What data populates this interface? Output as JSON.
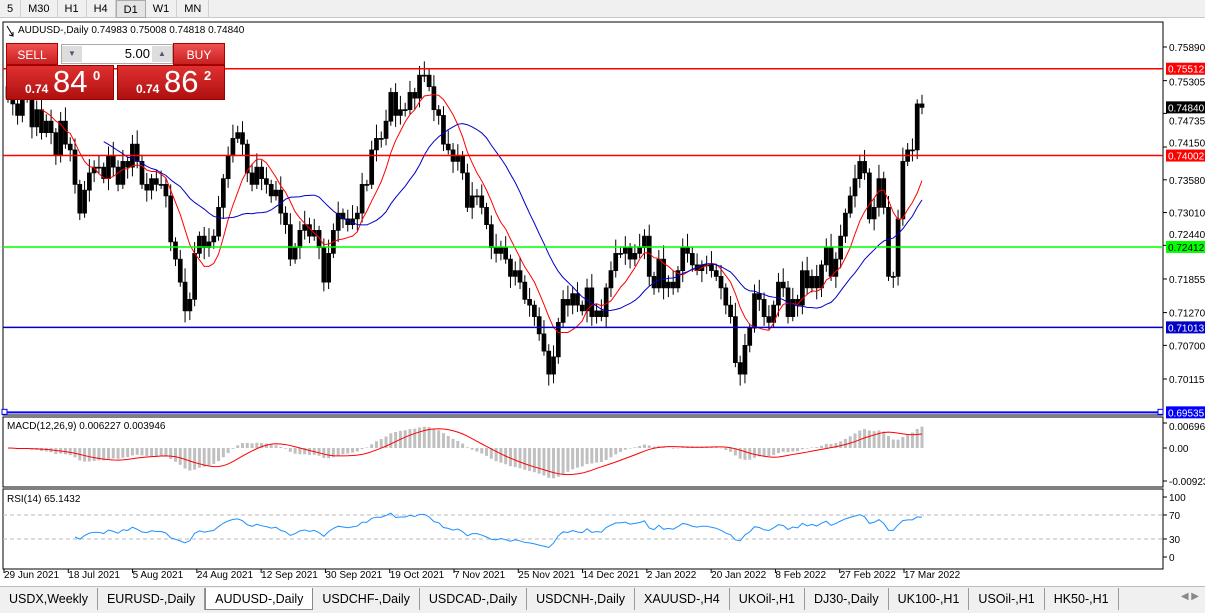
{
  "timeframes": [
    "5",
    "M30",
    "H1",
    "H4",
    "D1",
    "W1",
    "MN"
  ],
  "active_timeframe": "D1",
  "chart": {
    "symbol_line": "AUDUSD-,Daily  0.74983 0.75008 0.74818 0.74840",
    "trade_panel": {
      "sell_label": "SELL",
      "buy_label": "BUY",
      "lot": "5.00",
      "sell_prefix": "0.74",
      "sell_big": "84",
      "sell_sup": "0",
      "buy_prefix": "0.74",
      "buy_big": "86",
      "buy_sup": "2"
    },
    "price_ticks": [
      "0.75890",
      "0.75305",
      "0.74735",
      "0.74150",
      "0.73580",
      "0.73010",
      "0.72440",
      "0.71855",
      "0.71270",
      "0.70700",
      "0.70115"
    ],
    "levels": [
      {
        "price": "0.75512",
        "color": "#ff0000"
      },
      {
        "price": "0.74002",
        "color": "#ff0000"
      },
      {
        "price": "0.72412",
        "color": "#00ff00"
      },
      {
        "price": "0.71013",
        "color": "#0000c8"
      },
      {
        "price": "0.69535",
        "color": "#0000ff"
      }
    ],
    "current_price": "0.74840",
    "bull_color": "#00c000",
    "bear_color": "#ffffff",
    "macd_label": "MACD(12,26,9) 0.006227 0.003946",
    "macd_ticks": [
      "0.006964",
      "0.00",
      "-0.00923"
    ],
    "rsi_label": "RSI(14) 65.1432",
    "rsi_ticks": [
      "100",
      "70",
      "30",
      "0"
    ],
    "date_labels": [
      "29 Jun 2021",
      "18 Jul 2021",
      "5 Aug 2021",
      "24 Aug 2021",
      "12 Sep 2021",
      "30 Sep 2021",
      "19 Oct 2021",
      "7 Nov 2021",
      "25 Nov 2021",
      "14 Dec 2021",
      "2 Jan 2022",
      "20 Jan 2022",
      "8 Feb 2022",
      "27 Feb 2022",
      "17 Mar 2022"
    ]
  },
  "chart_data": {
    "type": "candlestick",
    "title": "AUDUSD-,Daily",
    "ylim": [
      0.6945,
      0.7625
    ],
    "closes": [
      0.75,
      0.749,
      0.747,
      0.75,
      0.751,
      0.745,
      0.748,
      0.744,
      0.746,
      0.744,
      0.74,
      0.746,
      0.742,
      0.741,
      0.735,
      0.73,
      0.734,
      0.737,
      0.738,
      0.738,
      0.736,
      0.74,
      0.738,
      0.735,
      0.739,
      0.738,
      0.742,
      0.739,
      0.735,
      0.734,
      0.736,
      0.735,
      0.735,
      0.733,
      0.725,
      0.722,
      0.718,
      0.713,
      0.715,
      0.723,
      0.726,
      0.724,
      0.725,
      0.726,
      0.731,
      0.736,
      0.74,
      0.743,
      0.744,
      0.742,
      0.737,
      0.735,
      0.738,
      0.736,
      0.735,
      0.733,
      0.734,
      0.73,
      0.728,
      0.722,
      0.724,
      0.727,
      0.728,
      0.726,
      0.727,
      0.724,
      0.718,
      0.723,
      0.727,
      0.73,
      0.729,
      0.728,
      0.729,
      0.73,
      0.735,
      0.735,
      0.741,
      0.743,
      0.743,
      0.746,
      0.751,
      0.747,
      0.748,
      0.748,
      0.751,
      0.75,
      0.754,
      0.754,
      0.752,
      0.748,
      0.747,
      0.742,
      0.741,
      0.739,
      0.74,
      0.737,
      0.731,
      0.733,
      0.733,
      0.731,
      0.728,
      0.724,
      0.723,
      0.724,
      0.722,
      0.719,
      0.72,
      0.718,
      0.715,
      0.714,
      0.712,
      0.709,
      0.706,
      0.702,
      0.705,
      0.711,
      0.715,
      0.714,
      0.716,
      0.714,
      0.713,
      0.717,
      0.712,
      0.713,
      0.712,
      0.717,
      0.72,
      0.723,
      0.723,
      0.724,
      0.722,
      0.723,
      0.724,
      0.726,
      0.719,
      0.717,
      0.722,
      0.717,
      0.718,
      0.717,
      0.72,
      0.724,
      0.723,
      0.721,
      0.72,
      0.721,
      0.721,
      0.72,
      0.719,
      0.717,
      0.714,
      0.712,
      0.704,
      0.702,
      0.707,
      0.71,
      0.716,
      0.715,
      0.712,
      0.711,
      0.714,
      0.718,
      0.717,
      0.712,
      0.715,
      0.714,
      0.72,
      0.717,
      0.719,
      0.717,
      0.721,
      0.724,
      0.719,
      0.722,
      0.726,
      0.73,
      0.733,
      0.736,
      0.739,
      0.737,
      0.729,
      0.731,
      0.736,
      0.731,
      0.719,
      0.719,
      0.729,
      0.739,
      0.741,
      0.741,
      0.749,
      0.7484
    ],
    "ma_fast_color": "#ff0000",
    "ma_slow_color": "#0000c8"
  },
  "tabs": [
    "USDX,Weekly",
    "EURUSD-,Daily",
    "AUDUSD-,Daily",
    "USDCHF-,Daily",
    "USDCAD-,Daily",
    "USDCNH-,Daily",
    "XAUUSD-,H4",
    "UKOil-,H1",
    "DJ30-,Daily",
    "UK100-,H1",
    "USOil-,H1",
    "HK50-,H1"
  ],
  "active_tab": "AUDUSD-,Daily"
}
